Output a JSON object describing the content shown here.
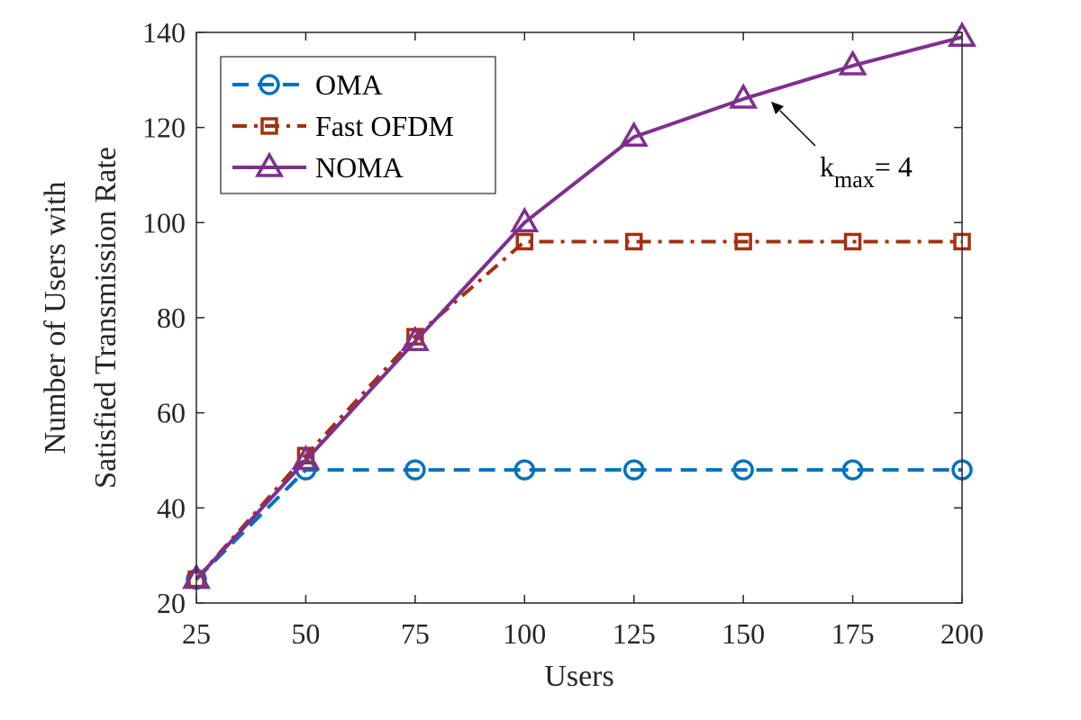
{
  "chart_data": {
    "type": "line",
    "title": "",
    "xlabel": "Users",
    "ylabel_line1": "Number of Users with",
    "ylabel_line2": "Satisfied Transmission Rate",
    "x": [
      25,
      50,
      75,
      100,
      125,
      150,
      175,
      200
    ],
    "x_tick_labels": [
      "25",
      "50",
      "75",
      "100",
      "125",
      "150",
      "175",
      "200"
    ],
    "y_ticks": [
      20,
      40,
      60,
      80,
      100,
      120,
      140
    ],
    "y_tick_labels": [
      "20",
      "40",
      "60",
      "80",
      "100",
      "120",
      "140"
    ],
    "xlim": [
      25,
      200
    ],
    "ylim": [
      20,
      140
    ],
    "grid": false,
    "legend_position": "top-left",
    "series": [
      {
        "name": "OMA",
        "color": "#0072BD",
        "marker": "circle",
        "line_style": "dashed",
        "values": [
          25,
          48,
          48,
          48,
          48,
          48,
          48,
          48
        ]
      },
      {
        "name": "Fast OFDM",
        "color": "#A2320E",
        "marker": "square",
        "line_style": "dash-dot",
        "values": [
          25,
          51,
          76,
          96,
          96,
          96,
          96,
          96
        ]
      },
      {
        "name": "NOMA",
        "color": "#7E2F8E",
        "marker": "triangle",
        "line_style": "solid",
        "values": [
          25,
          50,
          75,
          100,
          118,
          126,
          133,
          139
        ]
      }
    ],
    "annotation": {
      "text_main": "k",
      "text_sub": "max",
      "text_rest": "= 4",
      "points_to": {
        "x": 150,
        "y": 126
      }
    }
  }
}
